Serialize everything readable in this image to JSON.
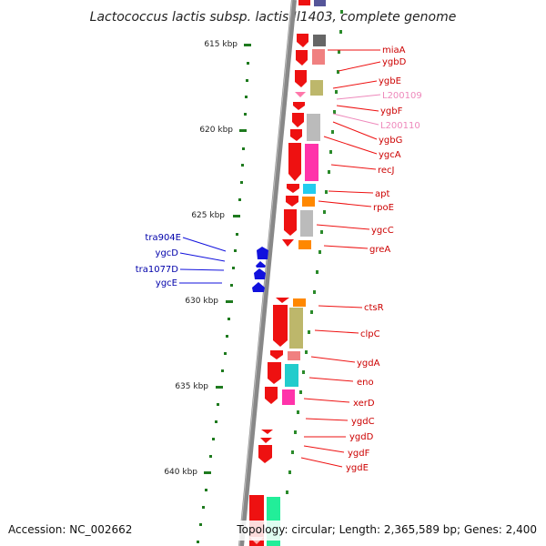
{
  "header": {
    "title": "Lactococcus lactis subsp. lactis Il1403, complete genome"
  },
  "footer": {
    "accession": "Accession: NC_002662",
    "topology": "Topology: circular; Length: 2,365,589 bp; Genes: 2,400"
  },
  "colors": {
    "forward_gene": "#ee1111",
    "reverse_gene": "#1111dd",
    "tick": "#1e7a1e",
    "backbone": "#888888",
    "label_gene": "#cc0000",
    "label_rna": "#ee88bb",
    "label_reverse": "#0000aa"
  },
  "scale": {
    "ticks": [
      {
        "label": "615 kbp"
      },
      {
        "label": "620 kbp"
      },
      {
        "label": "625 kbp"
      },
      {
        "label": "630 kbp"
      },
      {
        "label": "635 kbp"
      },
      {
        "label": "640 kbp"
      }
    ]
  },
  "genes_right": [
    {
      "label": "miaA",
      "type": "gene"
    },
    {
      "label": "ygbD",
      "type": "gene"
    },
    {
      "label": "ygbE",
      "type": "gene"
    },
    {
      "label": "L200109",
      "type": "rna"
    },
    {
      "label": "ygbF",
      "type": "gene"
    },
    {
      "label": "L200110",
      "type": "rna"
    },
    {
      "label": "ygbG",
      "type": "gene"
    },
    {
      "label": "ygcA",
      "type": "gene"
    },
    {
      "label": "recJ",
      "type": "gene"
    },
    {
      "label": "apt",
      "type": "gene"
    },
    {
      "label": "rpoE",
      "type": "gene"
    },
    {
      "label": "ygcC",
      "type": "gene"
    },
    {
      "label": "greA",
      "type": "gene"
    },
    {
      "label": "ctsR",
      "type": "gene"
    },
    {
      "label": "clpC",
      "type": "gene"
    },
    {
      "label": "ygdA",
      "type": "gene"
    },
    {
      "label": "eno",
      "type": "gene"
    },
    {
      "label": "xerD",
      "type": "gene"
    },
    {
      "label": "ygdC",
      "type": "gene"
    },
    {
      "label": "ygdD",
      "type": "gene"
    },
    {
      "label": "ygdF",
      "type": "gene"
    },
    {
      "label": "ygdE",
      "type": "gene"
    }
  ],
  "genes_left": [
    {
      "label": "tra904E"
    },
    {
      "label": "ygcD"
    },
    {
      "label": "tra1077D"
    },
    {
      "label": "ygcE"
    }
  ]
}
